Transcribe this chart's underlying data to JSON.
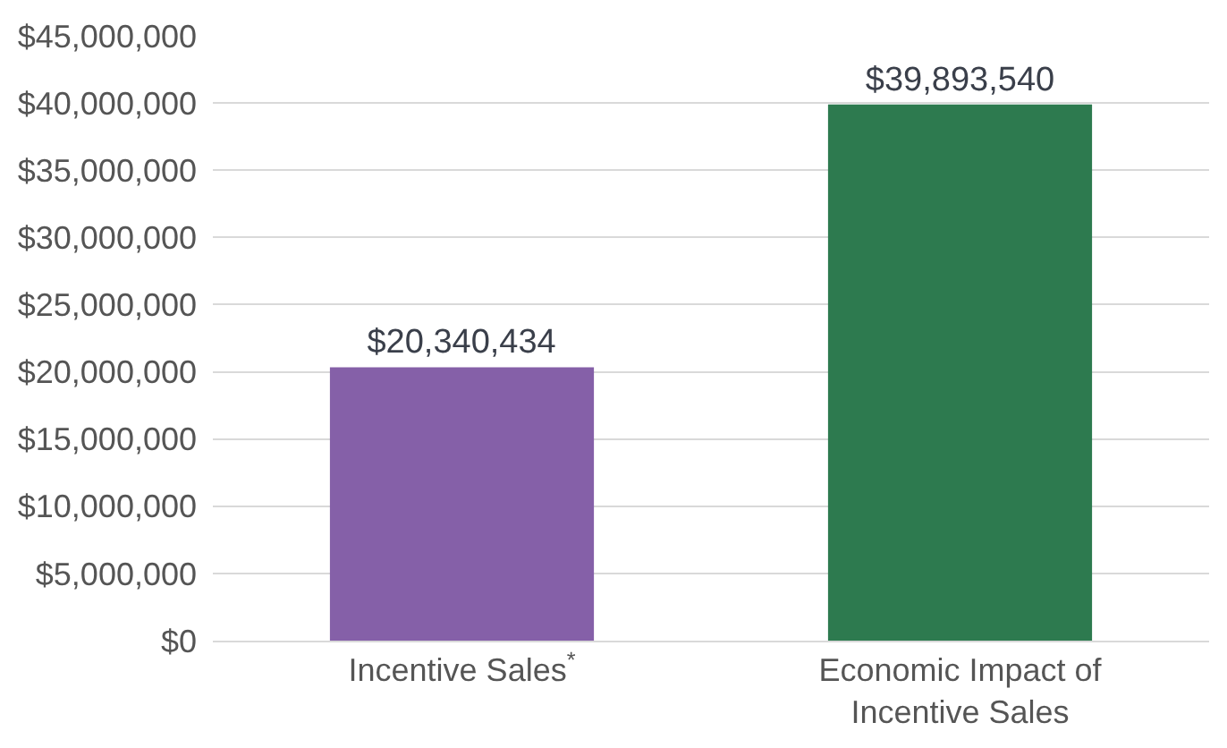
{
  "chart_data": {
    "type": "bar",
    "categories": [
      "Incentive Sales$^{*}$",
      "Economic Impact of\nIncentive Sales"
    ],
    "values": [
      20340434,
      39893540
    ],
    "colors": [
      "#8560a8",
      "#2d7a4f"
    ],
    "value_labels": [
      "$20,340,434",
      "$39,893,540"
    ],
    "ylim": [
      0,
      45000000
    ],
    "yticks": [
      {
        "value": 0,
        "label": "$0"
      },
      {
        "value": 5000000,
        "label": "$5,000,000"
      },
      {
        "value": 10000000,
        "label": "$10,000,000"
      },
      {
        "value": 15000000,
        "label": "$15,000,000"
      },
      {
        "value": 20000000,
        "label": "$20,000,000"
      },
      {
        "value": 25000000,
        "label": "$25,000,000"
      },
      {
        "value": 30000000,
        "label": "$30,000,000"
      },
      {
        "value": 35000000,
        "label": "$35,000,000"
      },
      {
        "value": 40000000,
        "label": "$40,000,000"
      },
      {
        "value": 45000000,
        "label": "$45,000,000"
      }
    ],
    "grid": "y"
  }
}
